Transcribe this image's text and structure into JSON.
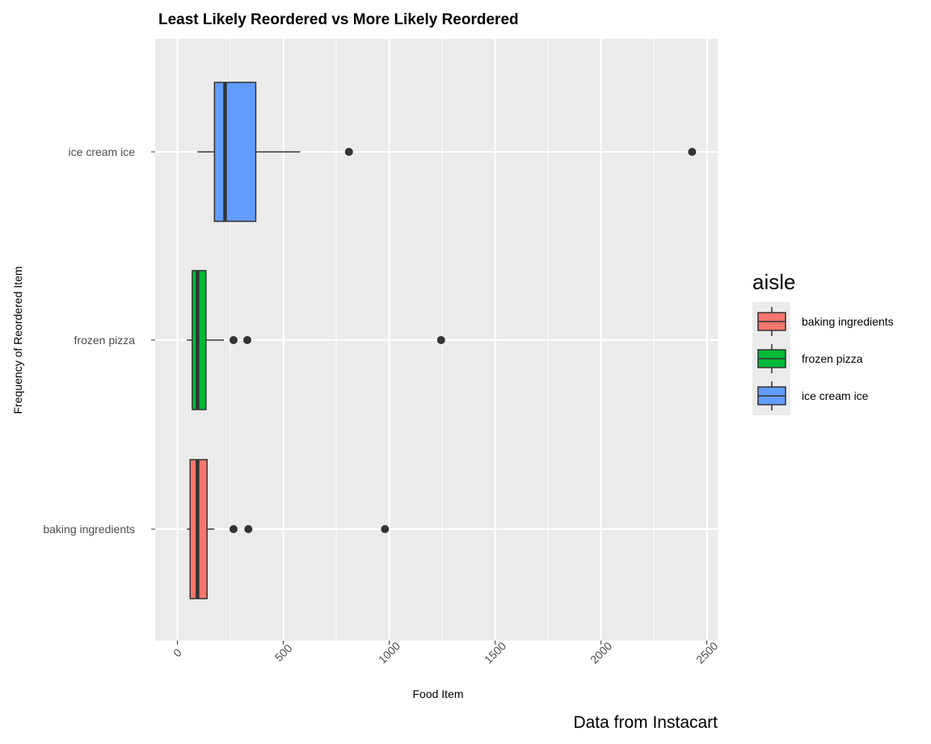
{
  "chart_data": {
    "type": "boxplot",
    "orientation": "horizontal",
    "title": "Least Likely Reordered vs More Likely Reordered",
    "xlabel": "Food Item",
    "ylabel": "Frequency of Reordered Item",
    "caption": "Data from Instacart",
    "xlim": [
      -80,
      2570
    ],
    "x_ticks": [
      0,
      500,
      1000,
      1500,
      2000,
      2500
    ],
    "x_tick_labels": [
      "0",
      "500",
      "1000",
      "1500",
      "2000",
      "2500"
    ],
    "grid": true,
    "legend_placement": "right",
    "legend_title": "aisle",
    "categories": [
      "baking ingredients",
      "frozen pizza",
      "ice cream ice"
    ],
    "series": [
      {
        "name": "baking ingredients",
        "color": "#F8766D",
        "whisker_low": 45,
        "q1": 60,
        "median": 95,
        "q3": 140,
        "whisker_high": 175,
        "outliers": [
          265,
          335,
          980
        ]
      },
      {
        "name": "frozen pizza",
        "color": "#00BA38",
        "whisker_low": 45,
        "q1": 70,
        "median": 95,
        "q3": 135,
        "whisker_high": 220,
        "outliers": [
          265,
          330,
          1245
        ]
      },
      {
        "name": "ice cream ice",
        "color": "#619CFF",
        "whisker_low": 95,
        "q1": 175,
        "median": 225,
        "q3": 370,
        "whisker_high": 580,
        "outliers": [
          810,
          2430
        ]
      }
    ]
  }
}
